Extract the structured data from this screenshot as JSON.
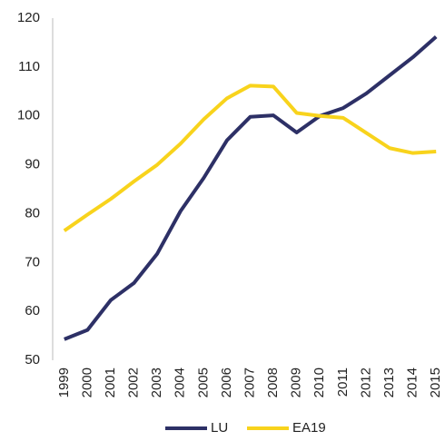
{
  "chart_data": {
    "type": "line",
    "categories": [
      "1999",
      "2000",
      "2001",
      "2002",
      "2003",
      "2004",
      "2005",
      "2006",
      "2007",
      "2008",
      "2009",
      "2010",
      "2011",
      "2012",
      "2013",
      "2014",
      "2015"
    ],
    "series": [
      {
        "name": "LU",
        "color": "#2d3066",
        "values": [
          54.3,
          56.2,
          62.3,
          65.8,
          71.8,
          80.5,
          87.3,
          95.0,
          99.8,
          100.1,
          96.6,
          100.0,
          101.6,
          104.6,
          108.3,
          112.0,
          116.2
        ]
      },
      {
        "name": "EA19",
        "color": "#f8d31c",
        "values": [
          76.5,
          79.8,
          83.0,
          86.6,
          90.0,
          94.3,
          99.3,
          103.6,
          106.2,
          106.0,
          100.6,
          100.0,
          99.6,
          96.5,
          93.4,
          92.4,
          92.7
        ]
      }
    ],
    "ylim": [
      50,
      120
    ],
    "yticks": [
      50,
      60,
      70,
      80,
      90,
      100,
      110,
      120
    ],
    "grid": false,
    "legend": "bottom"
  }
}
